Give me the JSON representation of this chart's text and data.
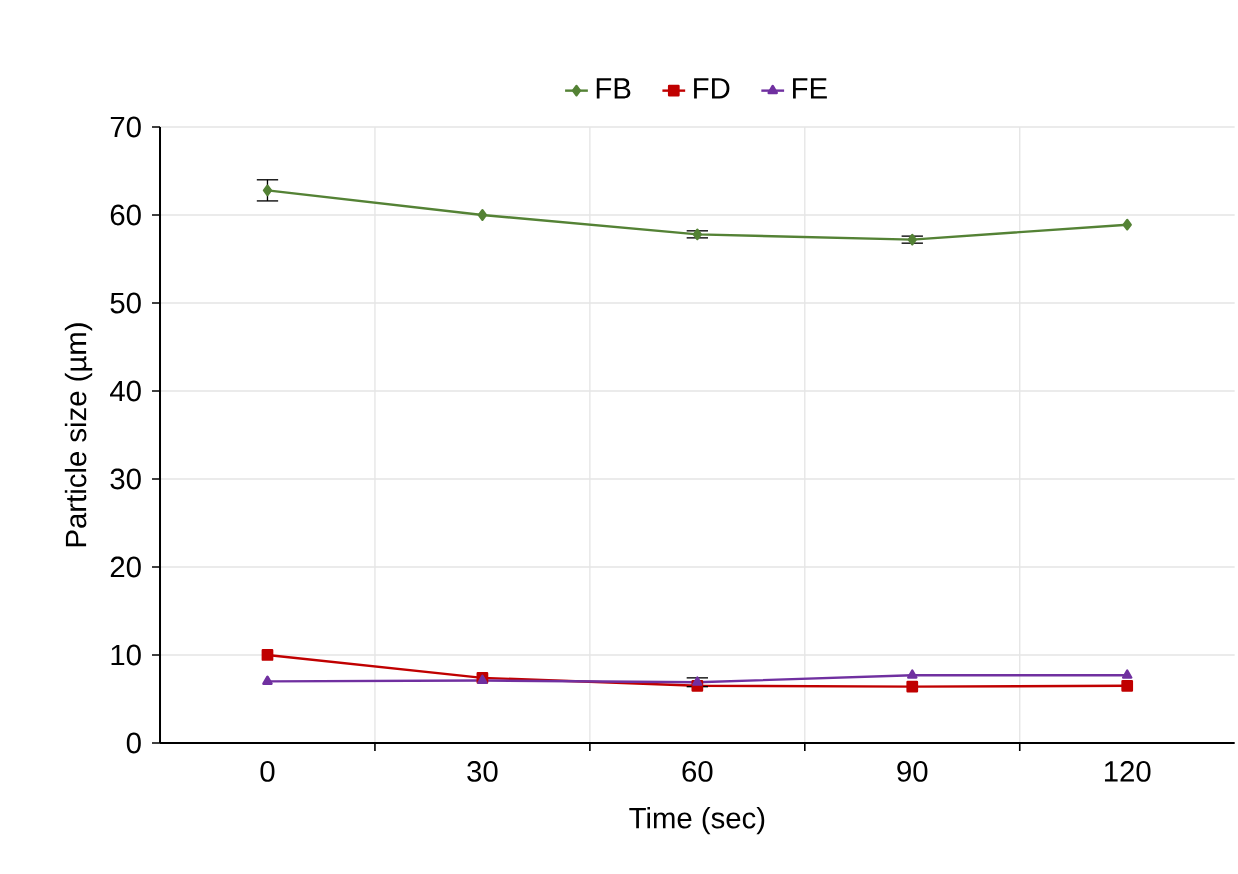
{
  "chart_data": {
    "type": "line",
    "xlabel": "Time (sec)",
    "ylabel": "Particle size (µm)",
    "categories": [
      "0",
      "30",
      "60",
      "90",
      "120"
    ],
    "series": [
      {
        "name": "FB",
        "color": "#548235",
        "marker": "diamond",
        "values": [
          62.8,
          60.0,
          57.8,
          57.2,
          58.9
        ],
        "errors": [
          1.2,
          null,
          0.4,
          0.4,
          null
        ]
      },
      {
        "name": "FD",
        "color": "#c00000",
        "marker": "square",
        "values": [
          10.0,
          7.4,
          6.5,
          6.4,
          6.5
        ]
      },
      {
        "name": "FE",
        "color": "#7030a0",
        "marker": "triangle",
        "values": [
          7.0,
          7.1,
          6.9,
          7.7,
          7.7
        ],
        "errors": [
          null,
          null,
          0.5,
          null,
          null
        ]
      }
    ],
    "ylim": [
      0,
      70
    ],
    "yticks": [
      0,
      10,
      20,
      30,
      40,
      50,
      60,
      70
    ],
    "grid": true,
    "legend": "top"
  }
}
